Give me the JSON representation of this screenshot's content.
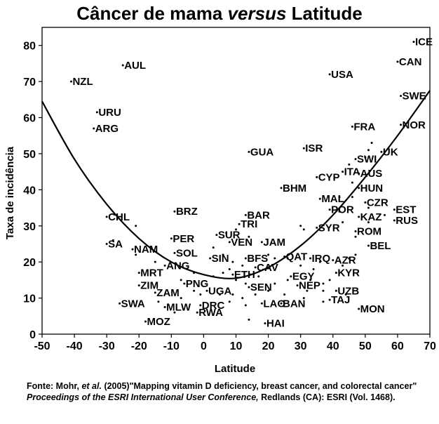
{
  "title": {
    "before": "Câncer de mama ",
    "emph": "versus",
    "after": " Latitude"
  },
  "source": {
    "label": "Fonte:",
    "authors": " Mohr, ",
    "etal": "et al.",
    "rest1": " (2005)\"Mapping vitamin D deficiency, breast cancer, and colorectal cancer\" ",
    "journal": "Proceedings of the ESRI International User Conference,",
    "rest2": " Redlands (CA): ESRI (Vol. 1468)."
  },
  "chart_data": {
    "type": "scatter",
    "xlabel": "Latitude",
    "ylabel": "Taxa de incidência",
    "xlim": [
      -50,
      70
    ],
    "ylim": [
      0,
      85
    ],
    "xticks": [
      -50,
      -40,
      -30,
      -20,
      -10,
      0,
      10,
      20,
      30,
      40,
      50,
      60,
      70
    ],
    "yticks": [
      0,
      10,
      20,
      30,
      40,
      50,
      60,
      70,
      80
    ],
    "grid": false,
    "labeled_points": [
      {
        "label": "ICE",
        "x": 65,
        "y": 81
      },
      {
        "label": "CAN",
        "x": 60,
        "y": 75.5
      },
      {
        "label": "USA",
        "x": 39,
        "y": 72
      },
      {
        "label": "AUL",
        "x": -25,
        "y": 74.5
      },
      {
        "label": "NZL",
        "x": -41,
        "y": 70
      },
      {
        "label": "SWE",
        "x": 61,
        "y": 66
      },
      {
        "label": "NOR",
        "x": 61,
        "y": 58
      },
      {
        "label": "URU",
        "x": -33,
        "y": 61.5
      },
      {
        "label": "ARG",
        "x": -34,
        "y": 57
      },
      {
        "label": "FRA",
        "x": 46,
        "y": 57.5
      },
      {
        "label": "UK",
        "x": 55,
        "y": 50.5
      },
      {
        "label": "GUA",
        "x": 14,
        "y": 50.5
      },
      {
        "label": "ISR",
        "x": 31,
        "y": 51.5
      },
      {
        "label": "SWI",
        "x": 47,
        "y": 48.5
      },
      {
        "label": "ITA",
        "x": 43,
        "y": 45
      },
      {
        "label": "AUS",
        "x": 48,
        "y": 44.5
      },
      {
        "label": "CYP",
        "x": 35,
        "y": 43.5
      },
      {
        "label": "HUN",
        "x": 48,
        "y": 40.5
      },
      {
        "label": "BHM",
        "x": 24,
        "y": 40.5
      },
      {
        "label": "MAL",
        "x": 36,
        "y": 37.5
      },
      {
        "label": "CZR",
        "x": 50,
        "y": 36.5
      },
      {
        "label": "POR",
        "x": 39,
        "y": 34.5
      },
      {
        "label": "EST",
        "x": 59,
        "y": 34.5
      },
      {
        "label": "KAZ",
        "x": 48,
        "y": 32.5
      },
      {
        "label": "RUS",
        "x": 59,
        "y": 31.5
      },
      {
        "label": "BRZ",
        "x": -9,
        "y": 34
      },
      {
        "label": "CHL",
        "x": -30,
        "y": 32.5
      },
      {
        "label": "BAR",
        "x": 13,
        "y": 33
      },
      {
        "label": "TRI",
        "x": 11,
        "y": 30.5
      },
      {
        "label": "SYR",
        "x": 35,
        "y": 29.5
      },
      {
        "label": "ROM",
        "x": 47,
        "y": 28.5
      },
      {
        "label": "SUR",
        "x": 4,
        "y": 27.5
      },
      {
        "label": "PER",
        "x": -10,
        "y": 26.5
      },
      {
        "label": "JAM",
        "x": 18,
        "y": 25.5
      },
      {
        "label": "VEN",
        "x": 8,
        "y": 25.5
      },
      {
        "label": "BEL",
        "x": 51,
        "y": 24.5
      },
      {
        "label": "SA",
        "x": -30,
        "y": 25
      },
      {
        "label": "NAM",
        "x": -22,
        "y": 23.5
      },
      {
        "label": "SOL",
        "x": -9,
        "y": 22.5
      },
      {
        "label": "QAT",
        "x": 25,
        "y": 21.5
      },
      {
        "label": "IRQ",
        "x": 33,
        "y": 21
      },
      {
        "label": "SIN",
        "x": 2,
        "y": 21
      },
      {
        "label": "BFS",
        "x": 13,
        "y": 21
      },
      {
        "label": "AZR",
        "x": 40,
        "y": 20.5
      },
      {
        "label": "ANG",
        "x": -12,
        "y": 19
      },
      {
        "label": "CAV",
        "x": 16,
        "y": 18.5
      },
      {
        "label": "ETH",
        "x": 9,
        "y": 16.5
      },
      {
        "label": "MRT",
        "x": -20,
        "y": 17
      },
      {
        "label": "KYR",
        "x": 41,
        "y": 17
      },
      {
        "label": "EGY",
        "x": 27,
        "y": 16
      },
      {
        "label": "PNG",
        "x": -6,
        "y": 14
      },
      {
        "label": "ZIM",
        "x": -20,
        "y": 13.5
      },
      {
        "label": "NEP",
        "x": 29,
        "y": 13.5
      },
      {
        "label": "SEN",
        "x": 14,
        "y": 13
      },
      {
        "label": "UGA",
        "x": 1,
        "y": 12
      },
      {
        "label": "UZB",
        "x": 41,
        "y": 12
      },
      {
        "label": "ZAM",
        "x": -15,
        "y": 11.5
      },
      {
        "label": "TAJ",
        "x": 39,
        "y": 9.5
      },
      {
        "label": "SWA",
        "x": -26,
        "y": 8.5
      },
      {
        "label": "BAN",
        "x": 24,
        "y": 8.5
      },
      {
        "label": "LAO",
        "x": 18,
        "y": 8.5
      },
      {
        "label": "DRC",
        "x": -1,
        "y": 8
      },
      {
        "label": "MLW",
        "x": -12,
        "y": 7.5
      },
      {
        "label": "MON",
        "x": 48,
        "y": 7
      },
      {
        "label": "RWA",
        "x": -2,
        "y": 6
      },
      {
        "label": "MOZ",
        "x": -18,
        "y": 3.5
      },
      {
        "label": "HAI",
        "x": 19,
        "y": 3
      }
    ],
    "unlabeled_points": [
      {
        "x": 52,
        "y": 53
      },
      {
        "x": 51,
        "y": 51
      },
      {
        "x": 50,
        "y": 49
      },
      {
        "x": 45,
        "y": 47
      },
      {
        "x": 46,
        "y": 42
      },
      {
        "x": 42,
        "y": 38
      },
      {
        "x": 46,
        "y": 38
      },
      {
        "x": 51,
        "y": 35
      },
      {
        "x": 42,
        "y": 34
      },
      {
        "x": 56,
        "y": 33
      },
      {
        "x": 51,
        "y": 31
      },
      {
        "x": 43,
        "y": 31
      },
      {
        "x": 30,
        "y": 30
      },
      {
        "x": 31,
        "y": 29
      },
      {
        "x": 47,
        "y": 27
      },
      {
        "x": -21,
        "y": 30
      },
      {
        "x": -28,
        "y": 26
      },
      {
        "x": 7,
        "y": 28
      },
      {
        "x": 10,
        "y": 29
      },
      {
        "x": 14,
        "y": 27
      },
      {
        "x": 3,
        "y": 24
      },
      {
        "x": -21,
        "y": 22
      },
      {
        "x": -15,
        "y": 20
      },
      {
        "x": 6,
        "y": 22
      },
      {
        "x": 9,
        "y": 20
      },
      {
        "x": 12,
        "y": 19
      },
      {
        "x": 20,
        "y": 22
      },
      {
        "x": 22,
        "y": 21
      },
      {
        "x": 26,
        "y": 21
      },
      {
        "x": 30,
        "y": 19
      },
      {
        "x": 34,
        "y": 18
      },
      {
        "x": 36,
        "y": 20
      },
      {
        "x": 45,
        "y": 21
      },
      {
        "x": 43,
        "y": 19
      },
      {
        "x": 47,
        "y": 22
      },
      {
        "x": 8,
        "y": 18
      },
      {
        "x": 6,
        "y": 17
      },
      {
        "x": 3,
        "y": 16
      },
      {
        "x": -3,
        "y": 17
      },
      {
        "x": -7,
        "y": 15
      },
      {
        "x": 10,
        "y": 15
      },
      {
        "x": 13,
        "y": 14
      },
      {
        "x": 17,
        "y": 16
      },
      {
        "x": 22,
        "y": 14
      },
      {
        "x": 26,
        "y": 15
      },
      {
        "x": 33,
        "y": 15
      },
      {
        "x": 37,
        "y": 14
      },
      {
        "x": 39,
        "y": 15
      },
      {
        "x": -3,
        "y": 12
      },
      {
        "x": -1,
        "y": 11
      },
      {
        "x": 5,
        "y": 11
      },
      {
        "x": 9,
        "y": 11
      },
      {
        "x": 12,
        "y": 10
      },
      {
        "x": 16,
        "y": 11
      },
      {
        "x": 20,
        "y": 12
      },
      {
        "x": 25,
        "y": 11
      },
      {
        "x": 32,
        "y": 12
      },
      {
        "x": 37,
        "y": 12
      },
      {
        "x": 44,
        "y": 11
      },
      {
        "x": -14,
        "y": 9
      },
      {
        "x": -7,
        "y": 10
      },
      {
        "x": -9,
        "y": 6
      },
      {
        "x": 8,
        "y": 9
      },
      {
        "x": 13,
        "y": 8
      },
      {
        "x": 31,
        "y": 10
      },
      {
        "x": 37,
        "y": 9
      },
      {
        "x": 14,
        "y": 4
      }
    ],
    "trend_line": {
      "type": "quadratic",
      "points": [
        {
          "x": -50,
          "y": 64.5
        },
        {
          "x": -40,
          "y": 48.5
        },
        {
          "x": -30,
          "y": 36
        },
        {
          "x": -20,
          "y": 26.5
        },
        {
          "x": -10,
          "y": 20
        },
        {
          "x": 0,
          "y": 16.5
        },
        {
          "x": 10,
          "y": 15.5
        },
        {
          "x": 20,
          "y": 18.5
        },
        {
          "x": 30,
          "y": 24.5
        },
        {
          "x": 40,
          "y": 33
        },
        {
          "x": 50,
          "y": 43.5
        },
        {
          "x": 60,
          "y": 55
        },
        {
          "x": 70,
          "y": 67.5
        }
      ]
    },
    "colors": {
      "marks": "#000000",
      "background": "#ffffff"
    }
  }
}
